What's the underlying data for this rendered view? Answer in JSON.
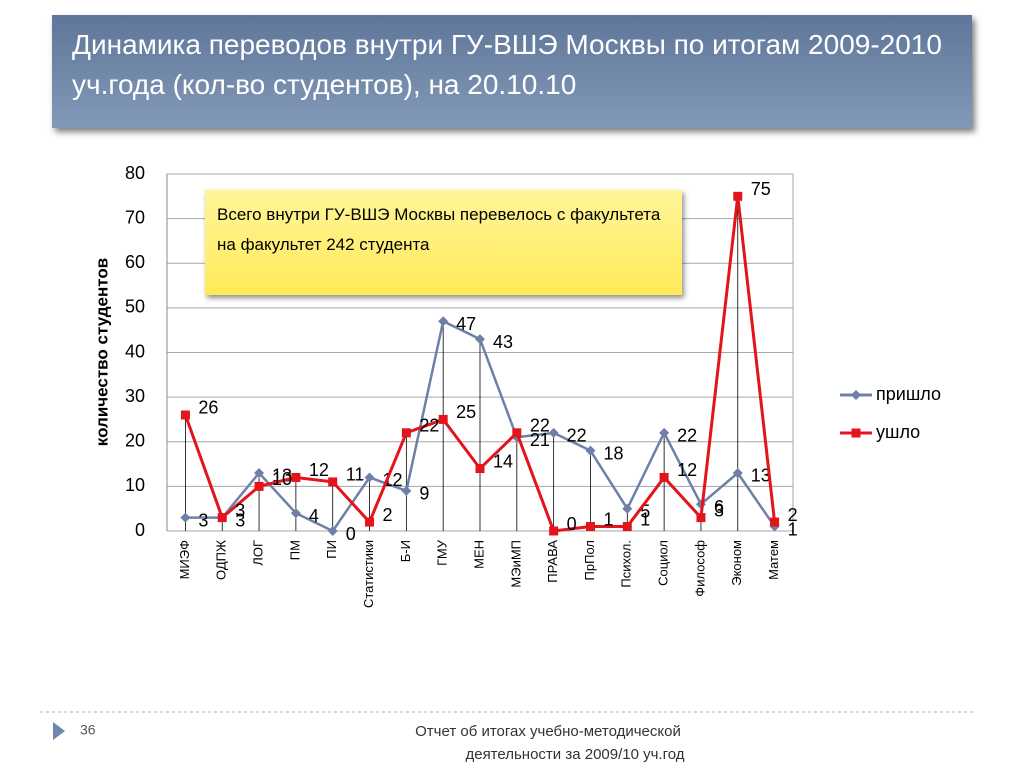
{
  "chart_data": {
    "type": "line",
    "title": "Динамика переводов внутри ГУ-ВШЭ Москвы по итогам 2009-2010 уч.года (кол-во студентов), на 20.10.10",
    "annotation": "Всего внутри ГУ-ВШЭ Москвы перевелось с факультета на факультет 242 студента",
    "y_label": "количество студентов",
    "categories": [
      "МИЭФ",
      "ОДПЖ",
      "ЛОГ",
      "ПМ",
      "ПИ",
      "Статистики",
      "Б-И",
      "ГМУ",
      "МЕН",
      "МЭиМП",
      "ПРАВА",
      "ПрПол",
      "Психол.",
      "Социол",
      "Философ",
      "Эконом",
      "Матем"
    ],
    "series": [
      {
        "name": "пришло",
        "color": "#6f80a8",
        "marker": "diamond",
        "values": [
          3,
          3,
          13,
          4,
          0,
          12,
          9,
          47,
          43,
          21,
          22,
          18,
          5,
          22,
          6,
          13,
          1
        ]
      },
      {
        "name": "ушло",
        "color": "#e3141b",
        "marker": "square",
        "values": [
          26,
          3,
          10,
          12,
          11,
          2,
          22,
          25,
          14,
          22,
          0,
          1,
          1,
          12,
          3,
          75,
          2
        ]
      }
    ],
    "ylim": [
      0,
      80
    ],
    "yticks": [
      0,
      10,
      20,
      30,
      40,
      50,
      60,
      70,
      80
    ],
    "grid": true,
    "legend": "right"
  },
  "footer": {
    "page": "36",
    "lines": [
      "Отчет об итогах учебно-методической",
      "деятельности за 2009/10 уч.год"
    ]
  }
}
